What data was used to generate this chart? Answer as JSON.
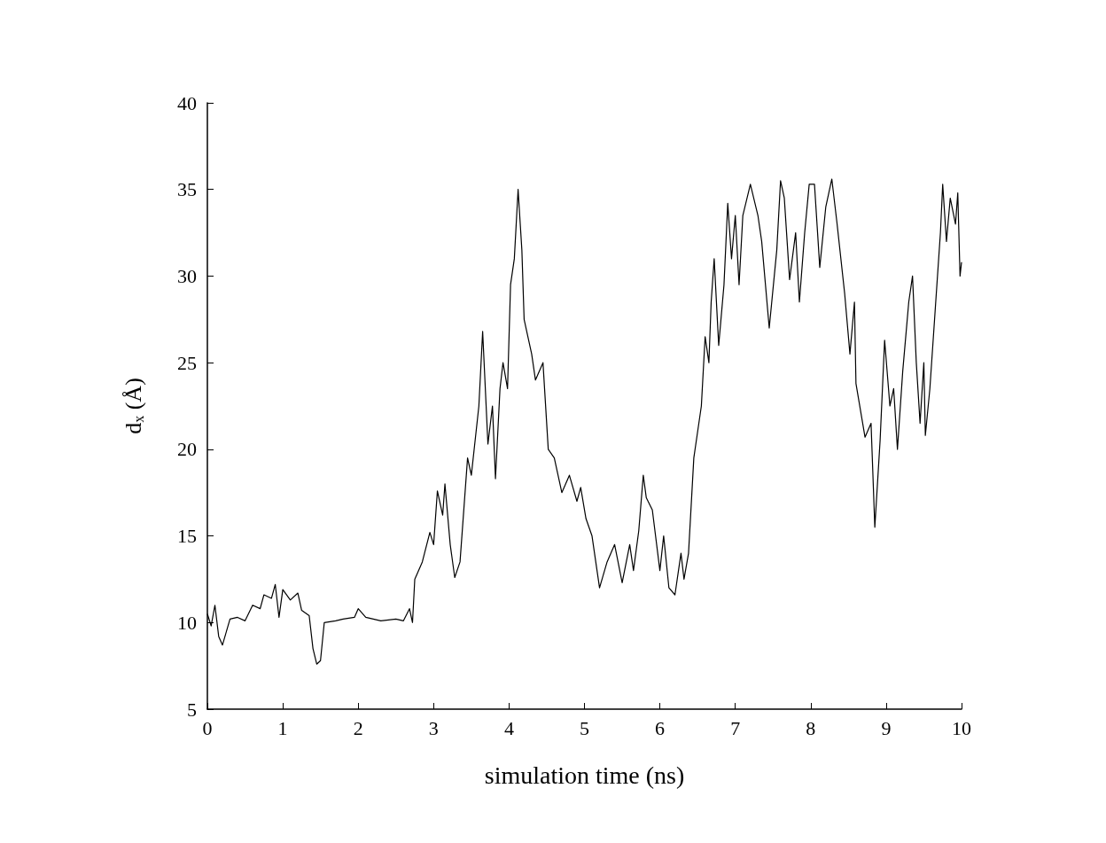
{
  "chart_data": {
    "type": "line",
    "xlabel": "simulation time (ns)",
    "ylabel": "d$_{x}$ (Å)",
    "xlim": [
      0,
      10
    ],
    "xticks": [
      0,
      1,
      2,
      3,
      4,
      5,
      6,
      7,
      8,
      9,
      10
    ],
    "ylim": [
      5,
      40
    ],
    "yticks": [
      5,
      10,
      15,
      20,
      25,
      30,
      35,
      40
    ],
    "grid": false,
    "marker": "none",
    "line_style": "solid",
    "series": [
      {
        "color": "#000000",
        "x": [
          0,
          0.05,
          0.1,
          0.15,
          0.2,
          0.3,
          0.4,
          0.5,
          0.6,
          0.7,
          0.75,
          0.85,
          0.9,
          0.95,
          1.0,
          1.1,
          1.2,
          1.25,
          1.35,
          1.4,
          1.45,
          1.5,
          1.55,
          1.7,
          1.8,
          1.95,
          2.0,
          2.1,
          2.3,
          2.5,
          2.6,
          2.68,
          2.72,
          2.75,
          2.85,
          2.95,
          3.0,
          3.05,
          3.12,
          3.15,
          3.22,
          3.28,
          3.35,
          3.45,
          3.5,
          3.6,
          3.65,
          3.72,
          3.78,
          3.82,
          3.88,
          3.92,
          3.98,
          4.02,
          4.07,
          4.12,
          4.17,
          4.2,
          4.25,
          4.3,
          4.35,
          4.45,
          4.52,
          4.6,
          4.7,
          4.8,
          4.9,
          4.95,
          5.02,
          5.1,
          5.2,
          5.3,
          5.4,
          5.5,
          5.6,
          5.65,
          5.72,
          5.78,
          5.82,
          5.9,
          6.0,
          6.05,
          6.12,
          6.2,
          6.28,
          6.32,
          6.38,
          6.45,
          6.55,
          6.6,
          6.65,
          6.68,
          6.72,
          6.78,
          6.85,
          6.9,
          6.95,
          7.0,
          7.05,
          7.1,
          7.2,
          7.3,
          7.35,
          7.45,
          7.55,
          7.6,
          7.65,
          7.72,
          7.8,
          7.85,
          7.92,
          7.98,
          8.05,
          8.12,
          8.2,
          8.28,
          8.35,
          8.45,
          8.52,
          8.58,
          8.6,
          8.72,
          8.8,
          8.85,
          8.92,
          8.98,
          9.05,
          9.1,
          9.15,
          9.22,
          9.3,
          9.35,
          9.4,
          9.45,
          9.5,
          9.52,
          9.58,
          9.65,
          9.72,
          9.75,
          9.8,
          9.85,
          9.92,
          9.95,
          9.98,
          10.0
        ],
        "values": [
          10.5,
          9.8,
          11,
          9.2,
          8.7,
          10.2,
          10.3,
          10.1,
          11.0,
          10.8,
          11.6,
          11.4,
          12.2,
          10.3,
          11.9,
          11.3,
          11.7,
          10.7,
          10.4,
          8.5,
          7.6,
          7.8,
          10.0,
          10.1,
          10.2,
          10.3,
          10.8,
          10.3,
          10.1,
          10.2,
          10.1,
          10.8,
          10.0,
          12.5,
          13.5,
          15.2,
          14.5,
          17.6,
          16.2,
          18.0,
          14.5,
          12.6,
          13.5,
          19.5,
          18.5,
          22.5,
          26.8,
          20.3,
          22.5,
          18.3,
          23.5,
          25.0,
          23.5,
          29.5,
          31.0,
          35.0,
          31.5,
          27.5,
          26.5,
          25.5,
          24.0,
          25.0,
          20.0,
          19.5,
          17.5,
          18.5,
          17.0,
          17.8,
          16.0,
          15.0,
          12.0,
          13.5,
          14.5,
          12.3,
          14.5,
          13.0,
          15.3,
          18.5,
          17.2,
          16.5,
          13.0,
          15.0,
          12.0,
          11.6,
          14.0,
          12.5,
          14.0,
          19.5,
          22.5,
          26.5,
          25.0,
          28.5,
          31.0,
          26.0,
          29.5,
          34.2,
          31.0,
          33.5,
          29.5,
          33.5,
          35.3,
          33.5,
          32.0,
          27.0,
          31.5,
          35.5,
          34.5,
          29.8,
          32.5,
          28.5,
          32.5,
          35.3,
          35.3,
          30.5,
          34.0,
          35.6,
          33.0,
          29.0,
          25.5,
          28.5,
          23.8,
          20.7,
          21.5,
          15.5,
          20.5,
          26.3,
          22.5,
          23.5,
          20.0,
          24.5,
          28.5,
          30.0,
          25.0,
          21.5,
          25.0,
          20.8,
          23.5,
          28.0,
          32.5,
          35.3,
          32.0,
          34.5,
          33.0,
          34.8,
          30.0,
          30.8
        ]
      }
    ]
  }
}
